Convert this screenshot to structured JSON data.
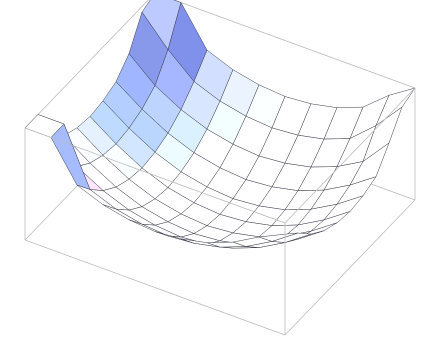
{
  "chart_data": {
    "type": "surface",
    "zlim": [
      0,
      1
    ],
    "z": [
      [
        1,
        1,
        0.66,
        0.57,
        0.52,
        0.5,
        0.52,
        0.57,
        0.66,
        0.79,
        0.9
      ],
      [
        1,
        1,
        0.5,
        0.41,
        0.36,
        0.34,
        0.36,
        0.41,
        0.5,
        0.63,
        0.79
      ],
      [
        0.75,
        0.5,
        0.37,
        0.28,
        0.23,
        0.21,
        0.23,
        0.28,
        0.37,
        0.5,
        0.66
      ],
      [
        0.57,
        0.41,
        0.28,
        0.19,
        0.14,
        0.12,
        0.14,
        0.19,
        0.28,
        0.41,
        0.57
      ],
      [
        0.52,
        0.36,
        0.23,
        0.14,
        0.09,
        0.07,
        0.09,
        0.14,
        0.23,
        0.36,
        0.52
      ],
      [
        0.5,
        0.34,
        0.21,
        0.12,
        0.07,
        0.05,
        0.07,
        0.12,
        0.21,
        0.34,
        0.5
      ],
      [
        0.52,
        0.36,
        0.23,
        0.14,
        0.09,
        0.07,
        0.09,
        0.14,
        0.23,
        0.36,
        0.52
      ],
      [
        0.57,
        0.41,
        0.28,
        0.19,
        0.14,
        0.12,
        0.14,
        0.19,
        0.28,
        0.41,
        0.57
      ],
      [
        0.7,
        0.5,
        0.37,
        0.28,
        0.23,
        0.21,
        0.23,
        0.28,
        0.37,
        0.5,
        0.75
      ],
      [
        0.95,
        0.7,
        0.5,
        0.41,
        0.36,
        0.34,
        0.36,
        0.41,
        0.5,
        0.7,
        0.95
      ],
      [
        1,
        1,
        0.66,
        0.57,
        0.52,
        0.5,
        0.52,
        0.57,
        0.66,
        0.85,
        1
      ]
    ]
  }
}
